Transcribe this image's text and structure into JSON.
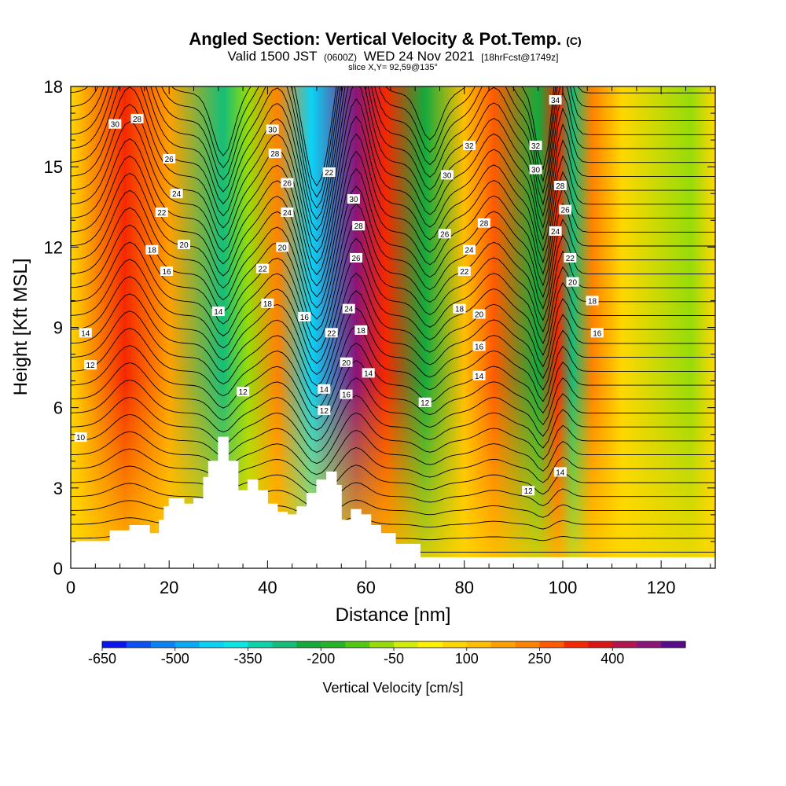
{
  "header": {
    "title": "Angled Section: Vertical Velocity & Pot.Temp.",
    "title_unit": "(C)",
    "subtitle_prefix": "Valid 1500 JST",
    "subtitle_small_1": "(0600Z)",
    "subtitle_main": "WED 24 Nov 2021",
    "subtitle_small_2": "[18hrFcst@1749z]",
    "slice_note": "slice X,Y= 92,59@135°"
  },
  "chart_data": {
    "type": "heatmap",
    "xlabel": "Distance [nm]",
    "ylabel": "Height [Kft MSL]",
    "xlim": [
      0,
      131
    ],
    "ylim": [
      0,
      18
    ],
    "x_ticks": [
      0,
      20,
      40,
      60,
      80,
      100,
      120
    ],
    "y_ticks": [
      0,
      3,
      6,
      9,
      12,
      15,
      18
    ],
    "colorbar": {
      "label": "Vertical Velocity [cm/s]",
      "tick_labels": [
        -650,
        -500,
        -350,
        -200,
        -50,
        100,
        250,
        400
      ],
      "levels": [
        -650,
        -600,
        -550,
        -500,
        -450,
        -400,
        -350,
        -300,
        -250,
        -200,
        -150,
        -100,
        -50,
        0,
        50,
        100,
        150,
        200,
        250,
        300,
        350,
        400,
        450,
        500
      ],
      "colors": [
        "#0a14f0",
        "#0a50f5",
        "#0a82f5",
        "#0aaaf5",
        "#0ad2f5",
        "#0ae6e6",
        "#0ad2aa",
        "#14be78",
        "#14aa3c",
        "#28b428",
        "#50c814",
        "#96dc0a",
        "#d2ec0a",
        "#fff000",
        "#ffd700",
        "#ffbe00",
        "#ffa000",
        "#ff8200",
        "#ff5a00",
        "#f52800",
        "#dc1414",
        "#b41450",
        "#8c1478",
        "#5a0a8c"
      ]
    },
    "velocity_bands": [
      {
        "x_center": 11,
        "value": 320
      },
      {
        "x_center": 20,
        "value": 180
      },
      {
        "x_center": 31,
        "value": -280
      },
      {
        "x_center": 36,
        "value": -100
      },
      {
        "x_center": 42,
        "value": 200
      },
      {
        "x_center": 49,
        "value": -420
      },
      {
        "x_center": 58,
        "value": 480
      },
      {
        "x_center": 64,
        "value": 300
      },
      {
        "x_center": 72,
        "value": -220
      },
      {
        "x_center": 80,
        "value": 100
      },
      {
        "x_center": 86,
        "value": 250
      },
      {
        "x_center": 95,
        "value": -250
      },
      {
        "x_center": 99,
        "value": 300
      },
      {
        "x_center": 102,
        "value": -300
      },
      {
        "x_center": 106,
        "value": 200
      },
      {
        "x_center": 112,
        "value": 80
      },
      {
        "x_center": 126,
        "value": -100
      }
    ],
    "terrain": {
      "x": [
        0,
        5,
        8,
        12,
        15,
        16,
        18,
        19,
        20,
        23,
        25,
        27,
        28,
        30,
        32,
        34,
        36,
        38,
        40,
        42,
        44,
        46,
        48,
        50,
        52,
        54,
        55,
        57,
        59,
        61,
        63,
        66,
        71,
        131
      ],
      "height": [
        1.0,
        1.0,
        1.4,
        1.6,
        1.6,
        1.3,
        1.8,
        2.3,
        2.6,
        2.4,
        2.6,
        3.4,
        4.0,
        4.9,
        4.0,
        2.9,
        3.3,
        2.9,
        2.4,
        2.1,
        2.0,
        2.3,
        2.8,
        3.3,
        3.6,
        3.1,
        1.8,
        2.2,
        2.0,
        1.6,
        1.3,
        0.9,
        0.4,
        0.3
      ]
    },
    "pot_temp_labels": [
      {
        "text": "30",
        "x": 9,
        "y": 16.6
      },
      {
        "text": "28",
        "x": 13.5,
        "y": 16.8
      },
      {
        "text": "26",
        "x": 20,
        "y": 15.3
      },
      {
        "text": "24",
        "x": 21.5,
        "y": 14.0
      },
      {
        "text": "22",
        "x": 18.5,
        "y": 13.3
      },
      {
        "text": "20",
        "x": 23,
        "y": 12.1
      },
      {
        "text": "18",
        "x": 16.5,
        "y": 11.9
      },
      {
        "text": "16",
        "x": 19.5,
        "y": 11.1
      },
      {
        "text": "14",
        "x": 3,
        "y": 8.8
      },
      {
        "text": "12",
        "x": 4,
        "y": 7.6
      },
      {
        "text": "10",
        "x": 2,
        "y": 4.9
      },
      {
        "text": "14",
        "x": 30,
        "y": 9.6
      },
      {
        "text": "12",
        "x": 35,
        "y": 6.6
      },
      {
        "text": "30",
        "x": 41,
        "y": 16.4
      },
      {
        "text": "28",
        "x": 41.5,
        "y": 15.5
      },
      {
        "text": "26",
        "x": 44,
        "y": 14.4
      },
      {
        "text": "24",
        "x": 44,
        "y": 13.3
      },
      {
        "text": "20",
        "x": 43,
        "y": 12.0
      },
      {
        "text": "22",
        "x": 39,
        "y": 11.2
      },
      {
        "text": "18",
        "x": 40,
        "y": 9.9
      },
      {
        "text": "16",
        "x": 47.5,
        "y": 9.4
      },
      {
        "text": "22",
        "x": 52.5,
        "y": 14.8
      },
      {
        "text": "30",
        "x": 57.5,
        "y": 13.8
      },
      {
        "text": "28",
        "x": 58.5,
        "y": 12.8
      },
      {
        "text": "26",
        "x": 58,
        "y": 11.6
      },
      {
        "text": "24",
        "x": 56.5,
        "y": 9.7
      },
      {
        "text": "22",
        "x": 53,
        "y": 8.8
      },
      {
        "text": "18",
        "x": 59,
        "y": 8.9
      },
      {
        "text": "20",
        "x": 56,
        "y": 7.7
      },
      {
        "text": "14",
        "x": 60.5,
        "y": 7.3
      },
      {
        "text": "14",
        "x": 51.5,
        "y": 6.7
      },
      {
        "text": "12",
        "x": 51.5,
        "y": 5.9
      },
      {
        "text": "16",
        "x": 56,
        "y": 6.5
      },
      {
        "text": "30",
        "x": 76.5,
        "y": 14.7
      },
      {
        "text": "32",
        "x": 81,
        "y": 15.8
      },
      {
        "text": "26",
        "x": 76,
        "y": 12.5
      },
      {
        "text": "28",
        "x": 84,
        "y": 12.9
      },
      {
        "text": "24",
        "x": 81,
        "y": 11.9
      },
      {
        "text": "22",
        "x": 80,
        "y": 11.1
      },
      {
        "text": "18",
        "x": 79,
        "y": 9.7
      },
      {
        "text": "20",
        "x": 83,
        "y": 9.5
      },
      {
        "text": "16",
        "x": 83,
        "y": 8.3
      },
      {
        "text": "14",
        "x": 83,
        "y": 7.2
      },
      {
        "text": "12",
        "x": 72,
        "y": 6.2
      },
      {
        "text": "34",
        "x": 98.5,
        "y": 17.5
      },
      {
        "text": "32",
        "x": 94.5,
        "y": 15.8
      },
      {
        "text": "30",
        "x": 94.5,
        "y": 14.9
      },
      {
        "text": "28",
        "x": 99.5,
        "y": 14.3
      },
      {
        "text": "26",
        "x": 100.5,
        "y": 13.4
      },
      {
        "text": "24",
        "x": 98.5,
        "y": 12.6
      },
      {
        "text": "22",
        "x": 101.5,
        "y": 11.6
      },
      {
        "text": "20",
        "x": 102,
        "y": 10.7
      },
      {
        "text": "18",
        "x": 106,
        "y": 10.0
      },
      {
        "text": "16",
        "x": 107,
        "y": 8.8
      },
      {
        "text": "14",
        "x": 99.5,
        "y": 3.6
      },
      {
        "text": "12",
        "x": 93,
        "y": 2.9
      }
    ]
  }
}
